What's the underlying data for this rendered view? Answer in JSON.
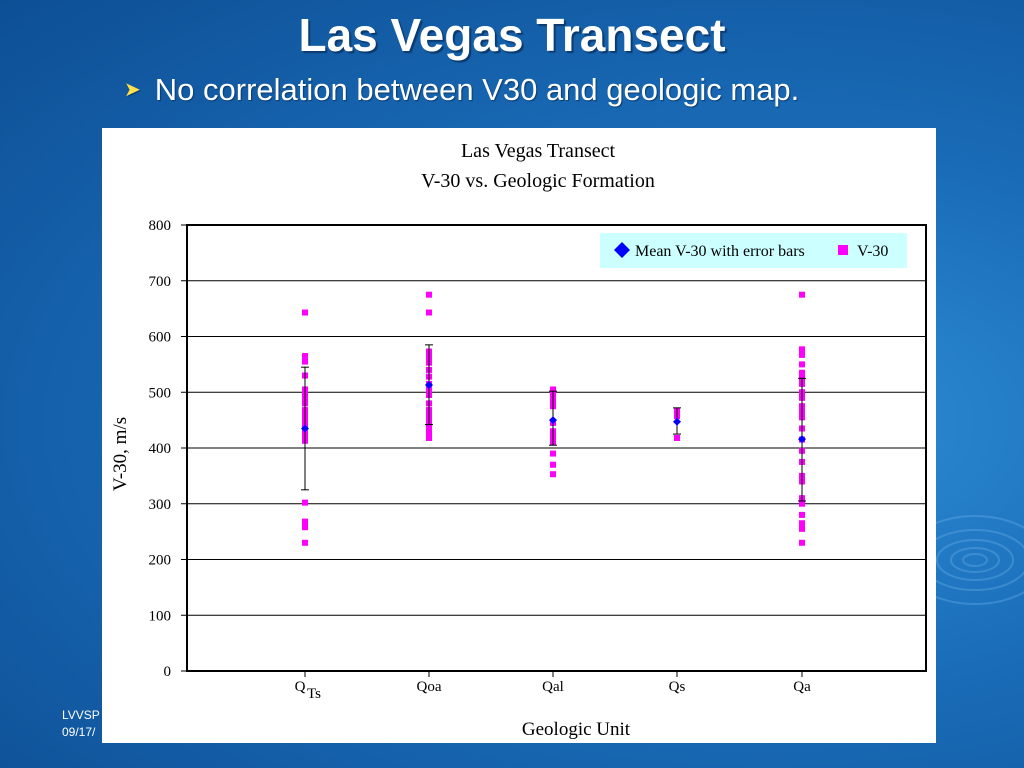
{
  "slide": {
    "title": "Las Vegas Transect",
    "bullet": "No correlation between V30 and geologic map.",
    "footer_line1": "LVVSP",
    "footer_line2": "09/17/"
  },
  "colors": {
    "background": "#1a6cb8",
    "mean_marker": "#0000ff",
    "v30_marker": "#ff00ff",
    "legend_bg": "#ccffff"
  },
  "chart_data": {
    "type": "scatter",
    "title": "Las Vegas Transect",
    "subtitle": "V-30 vs. Geologic Formation",
    "xlabel": "Geologic Unit",
    "ylabel": "V-30, m/s",
    "ylim": [
      0,
      800
    ],
    "yticks": [
      0,
      100,
      200,
      300,
      400,
      500,
      600,
      700,
      800
    ],
    "grid": true,
    "legend_position": "top-right",
    "categories": [
      {
        "main": "Q",
        "sub": "Ts"
      },
      {
        "main": "Qoa",
        "sub": ""
      },
      {
        "main": "Qal",
        "sub": ""
      },
      {
        "main": "Qs",
        "sub": ""
      },
      {
        "main": "Qa",
        "sub": ""
      }
    ],
    "series": [
      {
        "name": "Mean V-30 with error bars",
        "marker": "diamond",
        "values": [
          435,
          513,
          450,
          447,
          416
        ],
        "error_low": [
          325,
          442,
          405,
          425,
          305
        ],
        "error_high": [
          545,
          585,
          502,
          472,
          525
        ]
      },
      {
        "name": "V-30",
        "marker": "square",
        "points": [
          [
            0,
            643
          ],
          [
            0,
            565
          ],
          [
            0,
            555
          ],
          [
            0,
            530
          ],
          [
            0,
            505
          ],
          [
            0,
            498
          ],
          [
            0,
            490
          ],
          [
            0,
            480
          ],
          [
            0,
            468
          ],
          [
            0,
            460
          ],
          [
            0,
            450
          ],
          [
            0,
            440
          ],
          [
            0,
            432
          ],
          [
            0,
            422
          ],
          [
            0,
            413
          ],
          [
            0,
            302
          ],
          [
            0,
            268
          ],
          [
            0,
            258
          ],
          [
            0,
            230
          ],
          [
            1,
            675
          ],
          [
            1,
            643
          ],
          [
            1,
            573
          ],
          [
            1,
            563
          ],
          [
            1,
            553
          ],
          [
            1,
            540
          ],
          [
            1,
            528
          ],
          [
            1,
            515
          ],
          [
            1,
            505
          ],
          [
            1,
            495
          ],
          [
            1,
            480
          ],
          [
            1,
            468
          ],
          [
            1,
            458
          ],
          [
            1,
            448
          ],
          [
            1,
            438
          ],
          [
            1,
            428
          ],
          [
            1,
            418
          ],
          [
            2,
            505
          ],
          [
            2,
            495
          ],
          [
            2,
            485
          ],
          [
            2,
            475
          ],
          [
            2,
            445
          ],
          [
            2,
            430
          ],
          [
            2,
            420
          ],
          [
            2,
            410
          ],
          [
            2,
            390
          ],
          [
            2,
            370
          ],
          [
            2,
            353
          ],
          [
            3,
            467
          ],
          [
            3,
            457
          ],
          [
            3,
            418
          ],
          [
            4,
            675
          ],
          [
            4,
            577
          ],
          [
            4,
            567
          ],
          [
            4,
            550
          ],
          [
            4,
            535
          ],
          [
            4,
            525
          ],
          [
            4,
            515
          ],
          [
            4,
            500
          ],
          [
            4,
            490
          ],
          [
            4,
            475
          ],
          [
            4,
            465
          ],
          [
            4,
            455
          ],
          [
            4,
            435
          ],
          [
            4,
            415
          ],
          [
            4,
            395
          ],
          [
            4,
            375
          ],
          [
            4,
            350
          ],
          [
            4,
            340
          ],
          [
            4,
            310
          ],
          [
            4,
            300
          ],
          [
            4,
            280
          ],
          [
            4,
            265
          ],
          [
            4,
            255
          ],
          [
            4,
            230
          ]
        ]
      }
    ]
  }
}
